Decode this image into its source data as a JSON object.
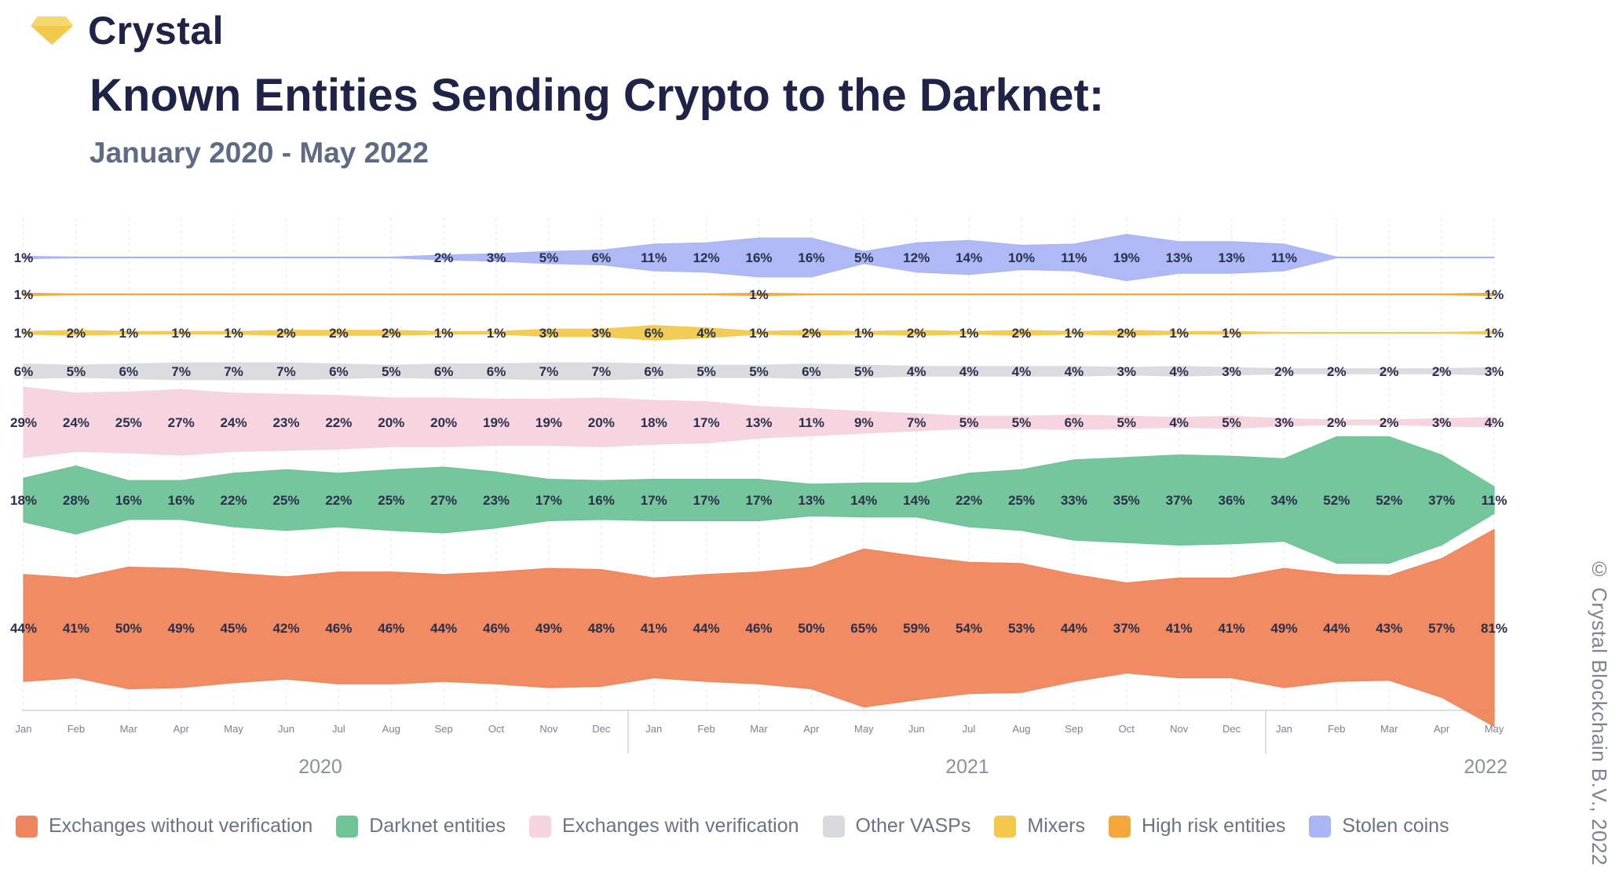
{
  "brand": {
    "name": "Crystal"
  },
  "header": {
    "title": "Known Entities Sending Crypto to the Darknet:",
    "subtitle": "January 2020 - May 2022"
  },
  "copyright": "© Crystal Blockchain B.V., 2022",
  "colors": {
    "exchanges_without_verification": "#ef855c",
    "darknet_entities": "#6ec397",
    "exchanges_with_verification": "#f5d3df",
    "other_vasps": "#d8dade",
    "mixers": "#f2c94c",
    "high_risk_entities": "#f4a63b",
    "stolen_coins": "#aab5f4"
  },
  "chart_data": {
    "type": "area",
    "x": [
      "Jan",
      "Feb",
      "Mar",
      "Apr",
      "May",
      "Jun",
      "Jul",
      "Aug",
      "Sep",
      "Oct",
      "Nov",
      "Dec",
      "Jan",
      "Feb",
      "Mar",
      "Apr",
      "May",
      "Jun",
      "Jul",
      "Aug",
      "Sep",
      "Oct",
      "Nov",
      "Dec",
      "Jan",
      "Feb",
      "Mar",
      "Apr",
      "May"
    ],
    "year_labels": [
      "2020",
      "2021",
      "2022"
    ],
    "series": [
      {
        "name": "Stolen coins",
        "key": "stolen_coins",
        "values": [
          1,
          null,
          null,
          null,
          null,
          null,
          null,
          null,
          2,
          3,
          5,
          6,
          11,
          12,
          16,
          16,
          5,
          12,
          14,
          10,
          11,
          19,
          13,
          13,
          11,
          null,
          null,
          null,
          null
        ],
        "labels": [
          "1%",
          "",
          "",
          "",
          "",
          "",
          "",
          "",
          "2%",
          "3%",
          "5%",
          "6%",
          "11%",
          "12%",
          "16%",
          "16%",
          "5%",
          "12%",
          "14%",
          "10%",
          "11%",
          "19%",
          "13%",
          "13%",
          "11%",
          "",
          "",
          "",
          ""
        ]
      },
      {
        "name": "High risk entities",
        "key": "high_risk_entities",
        "values": [
          1,
          null,
          null,
          null,
          null,
          null,
          null,
          null,
          null,
          null,
          null,
          null,
          null,
          null,
          1,
          null,
          null,
          null,
          null,
          null,
          null,
          null,
          null,
          null,
          null,
          null,
          null,
          null,
          1
        ],
        "labels": [
          "1%",
          "",
          "",
          "",
          "",
          "",
          "",
          "",
          "",
          "",
          "",
          "",
          "",
          "",
          "1%",
          "",
          "",
          "",
          "",
          "",
          "",
          "",
          "",
          "",
          "",
          "",
          "",
          "",
          "1%"
        ]
      },
      {
        "name": "Mixers",
        "key": "mixers",
        "values": [
          1,
          2,
          1,
          1,
          1,
          2,
          2,
          2,
          1,
          1,
          3,
          3,
          6,
          4,
          1,
          2,
          1,
          2,
          1,
          2,
          1,
          2,
          1,
          1,
          null,
          null,
          null,
          null,
          1
        ],
        "labels": [
          "1%",
          "2%",
          "1%",
          "1%",
          "1%",
          "2%",
          "2%",
          "2%",
          "1%",
          "1%",
          "3%",
          "3%",
          "6%",
          "4%",
          "1%",
          "2%",
          "1%",
          "2%",
          "1%",
          "2%",
          "1%",
          "2%",
          "1%",
          "1%",
          "",
          "",
          "",
          "",
          "1%"
        ]
      },
      {
        "name": "Other VASPs",
        "key": "other_vasps",
        "values": [
          6,
          5,
          6,
          7,
          7,
          7,
          6,
          5,
          6,
          6,
          7,
          7,
          6,
          5,
          5,
          6,
          5,
          4,
          4,
          4,
          4,
          3,
          4,
          3,
          2,
          2,
          2,
          2,
          3
        ],
        "labels": [
          "6%",
          "5%",
          "6%",
          "7%",
          "7%",
          "7%",
          "6%",
          "5%",
          "6%",
          "6%",
          "7%",
          "7%",
          "6%",
          "5%",
          "5%",
          "6%",
          "5%",
          "4%",
          "4%",
          "4%",
          "4%",
          "3%",
          "4%",
          "3%",
          "2%",
          "2%",
          "2%",
          "2%",
          "3%"
        ]
      },
      {
        "name": "Exchanges with verification",
        "key": "exchanges_with_verification",
        "values": [
          29,
          24,
          25,
          27,
          24,
          23,
          22,
          20,
          20,
          19,
          19,
          20,
          18,
          17,
          13,
          11,
          9,
          7,
          5,
          5,
          6,
          5,
          4,
          5,
          3,
          2,
          2,
          3,
          4
        ],
        "labels": [
          "29%",
          "24%",
          "25%",
          "27%",
          "24%",
          "23%",
          "22%",
          "20%",
          "20%",
          "19%",
          "19%",
          "20%",
          "18%",
          "17%",
          "13%",
          "11%",
          "9%",
          "7%",
          "5%",
          "5%",
          "6%",
          "5%",
          "4%",
          "5%",
          "3%",
          "2%",
          "2%",
          "3%",
          "4%"
        ]
      },
      {
        "name": "Darknet entities",
        "key": "darknet_entities",
        "values": [
          18,
          28,
          16,
          16,
          22,
          25,
          22,
          25,
          27,
          23,
          17,
          16,
          17,
          17,
          17,
          13,
          14,
          14,
          22,
          25,
          33,
          35,
          37,
          36,
          34,
          52,
          52,
          37,
          11
        ],
        "labels": [
          "18%",
          "28%",
          "16%",
          "16%",
          "22%",
          "25%",
          "22%",
          "25%",
          "27%",
          "23%",
          "17%",
          "16%",
          "17%",
          "17%",
          "17%",
          "13%",
          "14%",
          "14%",
          "22%",
          "25%",
          "33%",
          "35%",
          "37%",
          "36%",
          "34%",
          "52%",
          "52%",
          "37%",
          "11%"
        ]
      },
      {
        "name": "Exchanges without verification",
        "key": "exchanges_without_verification",
        "values": [
          44,
          41,
          50,
          49,
          45,
          42,
          46,
          46,
          44,
          46,
          49,
          48,
          41,
          44,
          46,
          50,
          65,
          59,
          54,
          53,
          44,
          37,
          41,
          41,
          49,
          44,
          43,
          57,
          81
        ],
        "labels": [
          "44%",
          "41%",
          "50%",
          "49%",
          "45%",
          "42%",
          "46%",
          "46%",
          "44%",
          "46%",
          "49%",
          "48%",
          "41%",
          "44%",
          "46%",
          "50%",
          "65%",
          "59%",
          "54%",
          "53%",
          "44%",
          "37%",
          "41%",
          "41%",
          "49%",
          "44%",
          "43%",
          "57%",
          "81%"
        ]
      }
    ],
    "legend_order": [
      "exchanges_without_verification",
      "darknet_entities",
      "exchanges_with_verification",
      "other_vasps",
      "mixers",
      "high_risk_entities",
      "stolen_coins"
    ],
    "grid": true,
    "legend_position": "bottom"
  }
}
